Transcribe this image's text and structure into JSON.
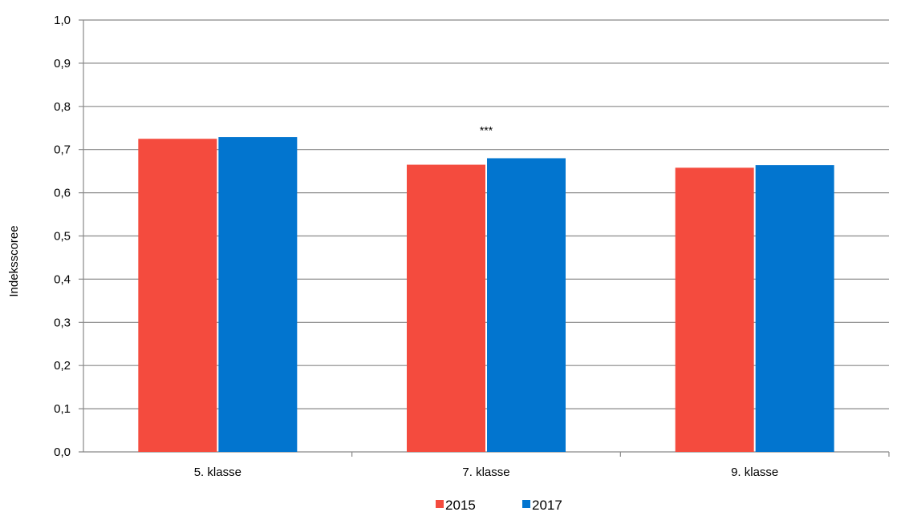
{
  "chart_data": {
    "type": "bar",
    "title": "",
    "xlabel": "",
    "ylabel": "Indeksscoree",
    "categories": [
      "5. klasse",
      "7. klasse",
      "9. klasse"
    ],
    "series": [
      {
        "name": "2015",
        "values": [
          0.725,
          0.665,
          0.658
        ]
      },
      {
        "name": "2017",
        "values": [
          0.729,
          0.68,
          0.664
        ]
      }
    ],
    "ylim": [
      0,
      1.0
    ],
    "yticks": [
      "0,0",
      "0,1",
      "0,2",
      "0,3",
      "0,4",
      "0,5",
      "0,6",
      "0,7",
      "0,8",
      "0,9",
      "1,0"
    ],
    "grid": true,
    "legend_position": "bottom",
    "annotations": [
      {
        "category": "7. klasse",
        "text": "***"
      }
    ],
    "colors": {
      "2015": "#f44b3e",
      "2017": "#0275cf",
      "grid": "#898989"
    }
  }
}
